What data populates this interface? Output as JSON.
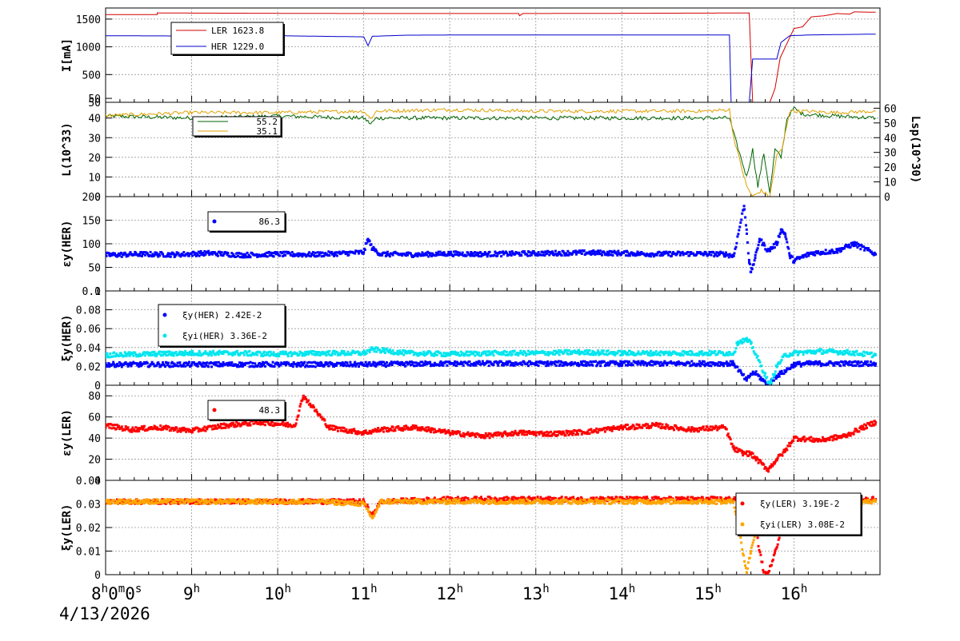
{
  "chart_data": [
    {
      "type": "line",
      "ylabel": "I[mA]",
      "ylim": [
        0,
        1700
      ],
      "yticks": [
        "50",
        "500",
        "1000",
        "1500"
      ],
      "grid": true,
      "legend_placement": "top-left",
      "legend_entries": [
        "LER    1623.8",
        "HER    1229.0"
      ],
      "series": [
        {
          "name": "LER",
          "color": "#d40000",
          "x": [
            8.0,
            8.6,
            8.6,
            11.0,
            12.8,
            12.81,
            12.85,
            15.48,
            15.52,
            15.55,
            15.72,
            15.78,
            15.84,
            15.9,
            16.0,
            16.1,
            16.2,
            16.35,
            16.5,
            16.65,
            16.7,
            16.95
          ],
          "y": [
            1580,
            1580,
            1610,
            1600,
            1600,
            1560,
            1600,
            1610,
            0,
            0,
            0,
            250,
            800,
            1000,
            1330,
            1360,
            1540,
            1560,
            1600,
            1590,
            1630,
            1623
          ]
        },
        {
          "name": "HER",
          "color": "#0000cc",
          "x": [
            8.0,
            9.0,
            10.0,
            11.0,
            11.05,
            11.1,
            11.3,
            11.5,
            12.5,
            15.25,
            15.27,
            15.3,
            15.48,
            15.52,
            15.55,
            15.8,
            15.85,
            15.95,
            16.2,
            16.95
          ],
          "y": [
            1200,
            1195,
            1200,
            1180,
            1020,
            1190,
            1200,
            1210,
            1215,
            1215,
            0,
            0,
            0,
            780,
            780,
            780,
            1080,
            1200,
            1215,
            1229
          ]
        }
      ]
    },
    {
      "type": "line",
      "ylabel": "L(10^33)",
      "y2label": "Lsp(10^30)",
      "ylim": [
        0,
        48
      ],
      "y2lim": [
        0,
        64
      ],
      "yticks": [
        "0",
        "10",
        "20",
        "30",
        "40",
        "50"
      ],
      "y2ticks": [
        "0",
        "10",
        "20",
        "30",
        "40",
        "50",
        "60"
      ],
      "grid": true,
      "legend_placement": "top-left",
      "legend_entries": [
        "55.2",
        "35.1"
      ],
      "series": [
        {
          "name": "L",
          "color": "#006400",
          "x": [
            8.0,
            9.0,
            10.0,
            11.0,
            11.08,
            11.15,
            12.0,
            13.0,
            14.0,
            15.0,
            15.25,
            15.3,
            15.45,
            15.52,
            15.58,
            15.65,
            15.72,
            15.78,
            15.85,
            15.92,
            16.0,
            16.1,
            16.5,
            16.95
          ],
          "y": [
            41,
            40,
            41,
            40,
            37,
            40,
            40,
            40,
            40,
            40,
            40,
            32,
            10,
            24,
            5,
            22,
            2,
            24,
            20,
            40,
            45,
            42,
            41,
            40
          ]
        },
        {
          "name": "Lsp",
          "color": "#e0a000",
          "x": [
            8.0,
            9.0,
            10.0,
            11.0,
            11.08,
            11.15,
            12.0,
            13.0,
            14.0,
            15.0,
            15.25,
            15.3,
            15.45,
            15.52,
            15.62,
            15.72,
            15.8,
            15.86,
            15.95,
            16.1,
            16.5,
            16.95
          ],
          "y": [
            55,
            57,
            57,
            58,
            53,
            58,
            59,
            58,
            58,
            58,
            59,
            40,
            7,
            0,
            4,
            0,
            28,
            32,
            58,
            58,
            57,
            58
          ]
        }
      ]
    },
    {
      "type": "scatter",
      "ylabel": "εy(HER)",
      "ylim": [
        0,
        200
      ],
      "yticks": [
        "0",
        "50",
        "100",
        "150",
        "200"
      ],
      "grid": true,
      "legend_placement": "top-left",
      "legend_entries": [
        "86.3"
      ],
      "series": [
        {
          "name": "εy(HER)",
          "color": "#0000ff",
          "x": [
            8.0,
            8.4,
            8.8,
            9.2,
            9.6,
            10.0,
            10.4,
            10.8,
            11.0,
            11.05,
            11.1,
            11.2,
            11.6,
            12.0,
            12.4,
            12.8,
            13.2,
            13.6,
            14.0,
            14.4,
            14.8,
            15.2,
            15.3,
            15.42,
            15.45,
            15.48,
            15.5,
            15.55,
            15.6,
            15.7,
            15.8,
            15.85,
            15.9,
            15.95,
            16.0,
            16.2,
            16.5,
            16.7,
            16.95
          ],
          "y": [
            76,
            78,
            77,
            80,
            76,
            78,
            77,
            80,
            82,
            110,
            90,
            78,
            77,
            79,
            78,
            79,
            80,
            81,
            80,
            78,
            79,
            78,
            74,
            180,
            130,
            60,
            40,
            70,
            110,
            85,
            100,
            130,
            120,
            75,
            64,
            80,
            85,
            100,
            78
          ]
        }
      ]
    },
    {
      "type": "scatter",
      "ylabel": "ξy(HER)",
      "ylim": [
        0,
        0.1
      ],
      "yticks": [
        "0",
        "0.02",
        "0.04",
        "0.06",
        "0.08",
        "0.1"
      ],
      "grid": true,
      "legend_placement": "top-left",
      "legend_entries": [
        "ξy(HER)    2.42E-2",
        "ξyi(HER)   3.36E-2"
      ],
      "series": [
        {
          "name": "ξy(HER)",
          "color": "#0000ff",
          "x": [
            8.0,
            9.0,
            10.0,
            11.0,
            12.0,
            13.0,
            14.0,
            15.0,
            15.3,
            15.45,
            15.5,
            15.55,
            15.7,
            15.8,
            15.9,
            16.0,
            16.2,
            16.6,
            16.95
          ],
          "y": [
            0.022,
            0.022,
            0.022,
            0.022,
            0.023,
            0.023,
            0.023,
            0.023,
            0.023,
            0.005,
            0.012,
            0.013,
            0.0,
            0.01,
            0.015,
            0.022,
            0.023,
            0.023,
            0.023
          ]
        },
        {
          "name": "ξyi(HER)",
          "color": "#00e5ee",
          "x": [
            8.0,
            8.5,
            9.0,
            9.5,
            10.0,
            10.5,
            11.0,
            11.1,
            11.5,
            12.0,
            12.5,
            13.0,
            13.5,
            14.0,
            14.5,
            15.0,
            15.3,
            15.35,
            15.45,
            15.5,
            15.72,
            15.8,
            15.9,
            16.0,
            16.3,
            16.6,
            16.95
          ],
          "y": [
            0.032,
            0.033,
            0.034,
            0.034,
            0.033,
            0.034,
            0.034,
            0.038,
            0.034,
            0.033,
            0.034,
            0.034,
            0.035,
            0.034,
            0.034,
            0.034,
            0.034,
            0.046,
            0.048,
            0.044,
            0.0,
            0.02,
            0.032,
            0.034,
            0.036,
            0.035,
            0.032
          ]
        }
      ]
    },
    {
      "type": "scatter",
      "ylabel": "εy(LER)",
      "ylim": [
        0,
        90
      ],
      "yticks": [
        "0",
        "20",
        "40",
        "60",
        "80"
      ],
      "grid": true,
      "legend_placement": "top-left",
      "legend_entries": [
        "48.3"
      ],
      "series": [
        {
          "name": "εy(LER)",
          "color": "#ff0000",
          "x": [
            8.0,
            8.3,
            8.6,
            9.0,
            9.4,
            9.8,
            10.2,
            10.3,
            10.6,
            11.0,
            11.2,
            11.6,
            12.0,
            12.4,
            12.8,
            13.2,
            13.6,
            14.0,
            14.4,
            14.8,
            15.2,
            15.3,
            15.4,
            15.5,
            15.7,
            15.8,
            15.9,
            16.0,
            16.3,
            16.6,
            16.8,
            16.95
          ],
          "y": [
            52,
            48,
            50,
            47,
            52,
            55,
            52,
            80,
            50,
            45,
            48,
            50,
            45,
            42,
            45,
            44,
            46,
            50,
            52,
            48,
            50,
            30,
            26,
            25,
            10,
            20,
            28,
            40,
            38,
            42,
            50,
            55
          ]
        }
      ]
    },
    {
      "type": "scatter",
      "ylabel": "ξy(LER)",
      "ylim": [
        0,
        0.04
      ],
      "yticks": [
        "0",
        "0.01",
        "0.02",
        "0.03",
        "0.04"
      ],
      "grid": true,
      "legend_placement": "top-right",
      "legend_entries": [
        "ξy(LER)    3.19E-2",
        "ξyi(LER)   3.08E-2"
      ],
      "series": [
        {
          "name": "ξy(LER)",
          "color": "#ff0000",
          "x": [
            8.0,
            9.0,
            10.0,
            11.0,
            11.1,
            11.2,
            12.0,
            13.0,
            14.0,
            15.0,
            15.3,
            15.35,
            15.55,
            15.65,
            15.7,
            15.78,
            15.85,
            15.95,
            16.1,
            16.5,
            16.95
          ],
          "y": [
            0.031,
            0.031,
            0.031,
            0.031,
            0.025,
            0.031,
            0.032,
            0.032,
            0.032,
            0.032,
            0.032,
            0.033,
            0.02,
            0.001,
            0.0,
            0.01,
            0.018,
            0.025,
            0.033,
            0.032,
            0.032
          ]
        },
        {
          "name": "ξyi(LER)",
          "color": "#ffa500",
          "x": [
            8.0,
            8.5,
            9.0,
            9.5,
            10.0,
            10.5,
            11.0,
            11.1,
            11.2,
            11.5,
            12.0,
            12.5,
            13.0,
            13.5,
            14.0,
            14.5,
            15.0,
            15.3,
            15.45,
            15.5,
            15.55,
            15.65,
            15.8,
            15.9,
            16.0,
            16.3,
            16.6,
            16.95
          ],
          "y": [
            0.031,
            0.031,
            0.031,
            0.031,
            0.031,
            0.031,
            0.03,
            0.024,
            0.031,
            0.031,
            0.031,
            0.031,
            0.031,
            0.031,
            0.031,
            0.031,
            0.031,
            0.031,
            0.001,
            0.01,
            0.018,
            0.02,
            0.02,
            0.025,
            0.031,
            0.031,
            0.031,
            0.031
          ]
        }
      ]
    }
  ],
  "x_axis": {
    "xlim": [
      8.0,
      17.0
    ],
    "tick_labels": [
      {
        "x": 8,
        "base": "8",
        "sup": "h",
        "rest": "0",
        "sup2": "m",
        "rest2": "0",
        "sup3": "s"
      },
      {
        "x": 9,
        "base": "9",
        "sup": "h"
      },
      {
        "x": 10,
        "base": "10",
        "sup": "h"
      },
      {
        "x": 11,
        "base": "11",
        "sup": "h"
      },
      {
        "x": 12,
        "base": "12",
        "sup": "h"
      },
      {
        "x": 13,
        "base": "13",
        "sup": "h"
      },
      {
        "x": 14,
        "base": "14",
        "sup": "h"
      },
      {
        "x": 15,
        "base": "15",
        "sup": "h"
      },
      {
        "x": 16,
        "base": "16",
        "sup": "h"
      }
    ],
    "date": "4/13/2026"
  }
}
